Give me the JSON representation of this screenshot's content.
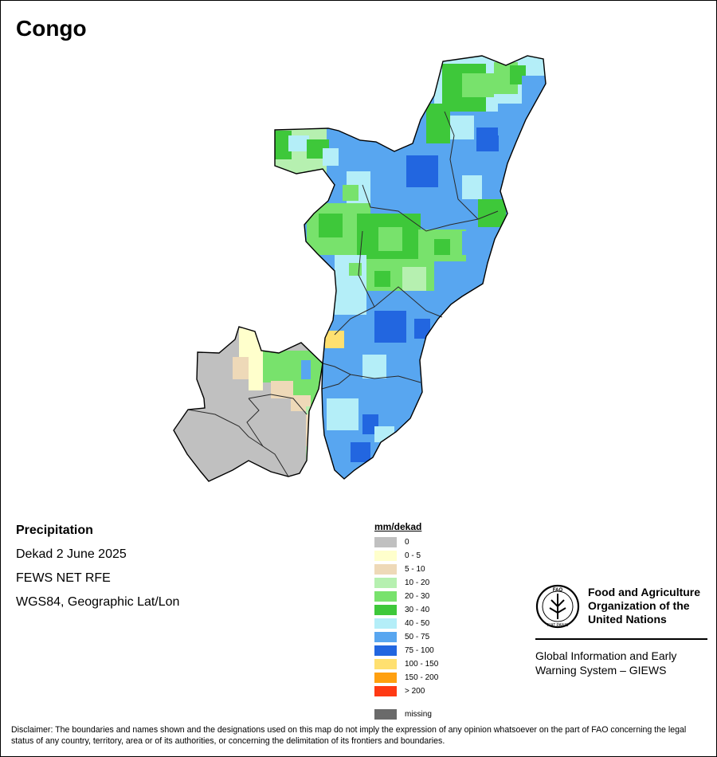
{
  "title": "Congo",
  "info": {
    "heading": "Precipitation",
    "period": "Dekad 2 June 2025",
    "source": "FEWS NET RFE",
    "projection": "WGS84, Geographic Lat/Lon"
  },
  "legend": {
    "title": "mm/dekad",
    "items": [
      {
        "label": "0",
        "color": "#c0c0c0"
      },
      {
        "label": "0 - 5",
        "color": "#ffffcc"
      },
      {
        "label": "5 - 10",
        "color": "#eed9b8"
      },
      {
        "label": "10 - 20",
        "color": "#b6f0b0"
      },
      {
        "label": "20 - 30",
        "color": "#78e26c"
      },
      {
        "label": "30 - 40",
        "color": "#3ec83a"
      },
      {
        "label": "40 - 50",
        "color": "#b4eef8"
      },
      {
        "label": "50 - 75",
        "color": "#58a6f0"
      },
      {
        "label": "75 - 100",
        "color": "#2266e0"
      },
      {
        "label": "100 - 150",
        "color": "#ffe070"
      },
      {
        "label": "150 - 200",
        "color": "#ffa010"
      },
      {
        "label": "> 200",
        "color": "#ff3a14"
      }
    ],
    "missing": {
      "label": "missing",
      "color": "#6a6a6a"
    }
  },
  "org": {
    "name_line1": "Food and Agriculture",
    "name_line2": "Organization of the",
    "name_line3": "United Nations",
    "system_line1": "Global Information and Early",
    "system_line2": "Warning System – GIEWS",
    "logo_text_top": "FAO",
    "logo_text_bottom": "FIAT PANIS"
  },
  "disclaimer": "Disclaimer: The boundaries and names shown and the designations used on this map do not imply the expression of any opinion whatsoever on the part of FAO concerning the legal status of any country, territory, area or of its authorities, or concerning the delimitation of its frontiers and boundaries."
}
